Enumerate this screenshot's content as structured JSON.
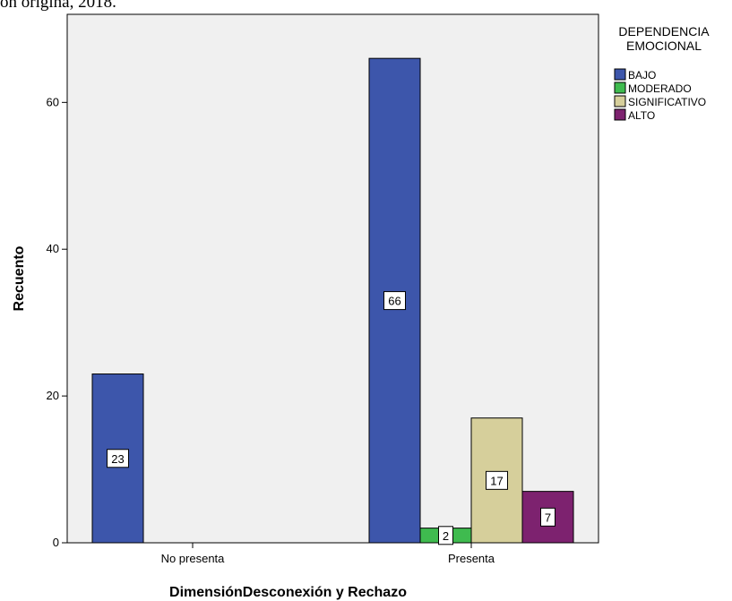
{
  "cutoff_text": "ón origina, 2018.",
  "chart_data": {
    "type": "bar",
    "xlabel": "DimensiónDesconexión y Rechazo",
    "ylabel": "Recuento",
    "categories": [
      "No presenta",
      "Presenta"
    ],
    "ylim": [
      0,
      72
    ],
    "yticks": [
      0,
      20,
      40,
      60
    ],
    "legend": {
      "title_lines": [
        "DEPENDENCIA",
        "EMOCIONAL"
      ],
      "placement": "top-right, outside plot"
    },
    "series": [
      {
        "name": "BAJO",
        "color": "#3d56ab",
        "values": [
          23,
          66
        ]
      },
      {
        "name": "MODERADO",
        "color": "#3fbb4f",
        "values": [
          null,
          2
        ]
      },
      {
        "name": "SIGNIFICATIVO",
        "color": "#d6cf9b",
        "values": [
          null,
          17
        ]
      },
      {
        "name": "ALTO",
        "color": "#7d226f",
        "values": [
          null,
          7
        ]
      }
    ],
    "plot_background": "#f0f0f0",
    "grid": false
  }
}
